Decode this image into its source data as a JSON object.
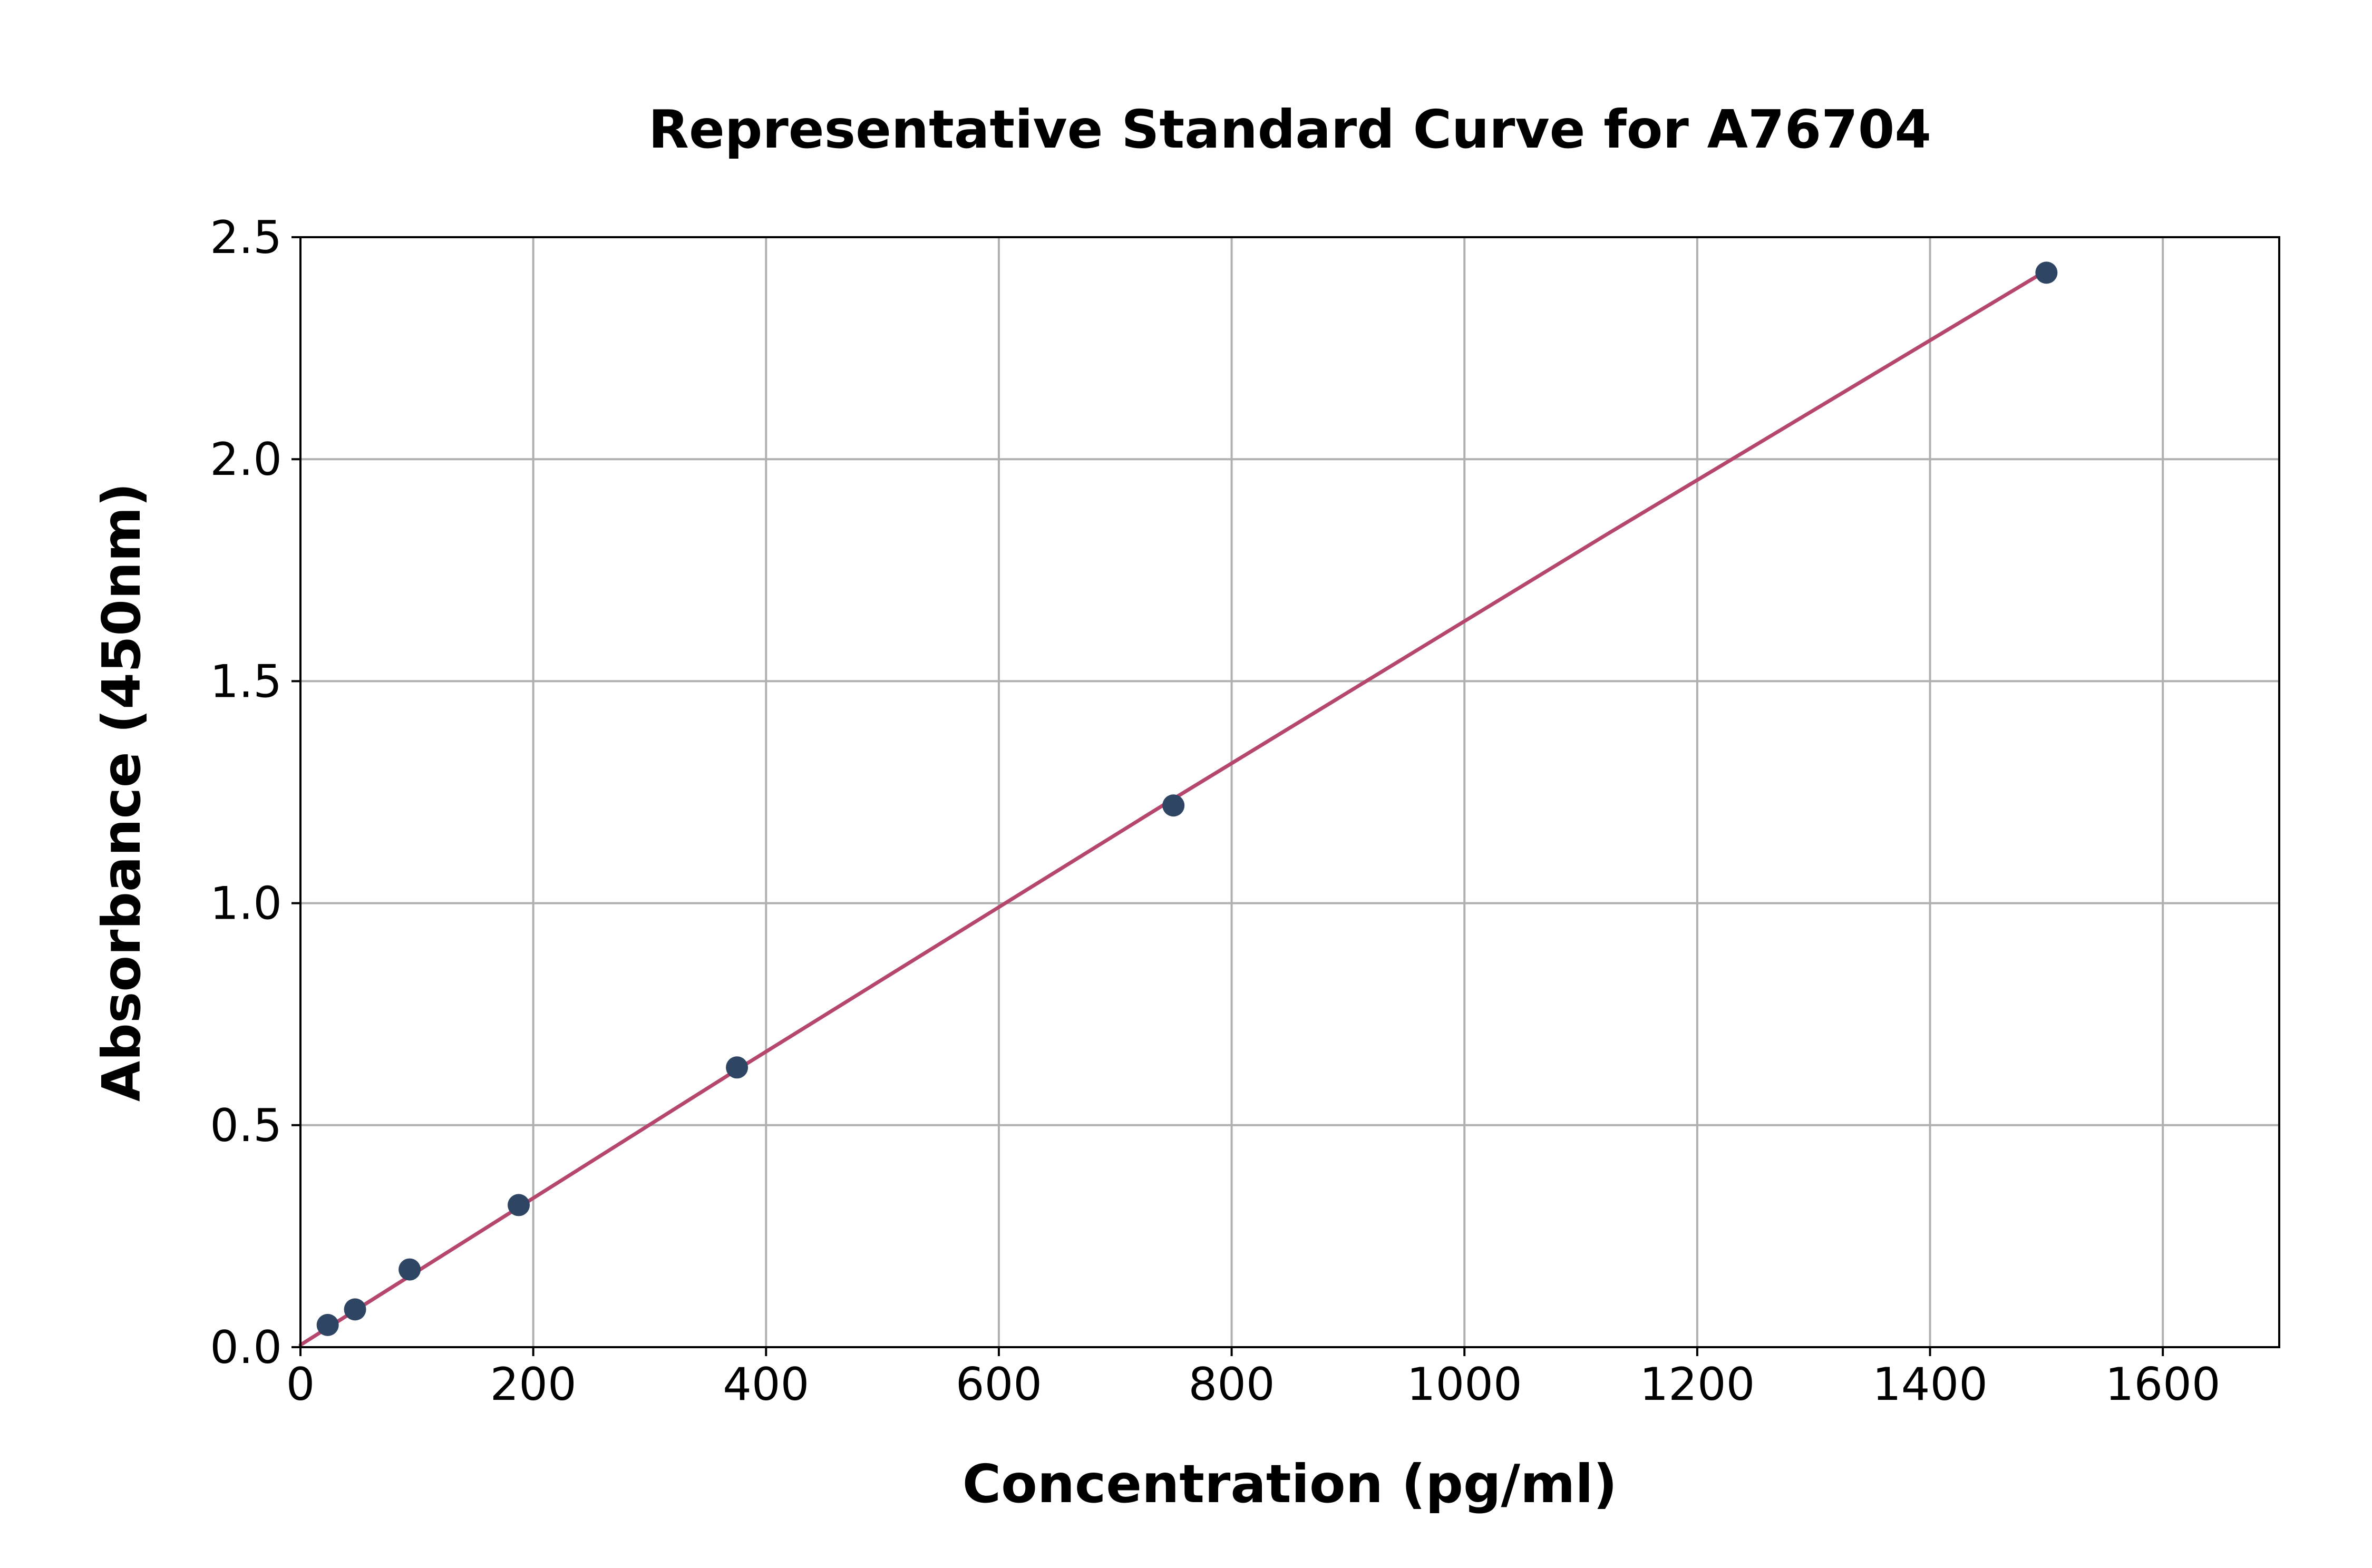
{
  "chart_data": {
    "type": "scatter",
    "title": "Representative Standard Curve for A76704",
    "xlabel": "Concentration (pg/ml)",
    "ylabel": "Absorbance (450nm)",
    "xlim": [
      0,
      1700
    ],
    "ylim": [
      0,
      2.5
    ],
    "x_ticks": [
      0,
      200,
      400,
      600,
      800,
      1000,
      1200,
      1400,
      1600
    ],
    "x_tick_labels": [
      "0",
      "200",
      "400",
      "600",
      "800",
      "1000",
      "1200",
      "1400",
      "1600"
    ],
    "y_ticks": [
      0,
      0.5,
      1.0,
      1.5,
      2.0,
      2.5
    ],
    "y_tick_labels": [
      "0.0",
      "0.5",
      "1.0",
      "1.5",
      "2.0",
      "2.5"
    ],
    "grid": true,
    "series": [
      {
        "kind": "points",
        "x": [
          23.4,
          46.9,
          93.8,
          187.5,
          375,
          750,
          1500
        ],
        "y": [
          0.05,
          0.085,
          0.175,
          0.32,
          0.63,
          1.22,
          2.42
        ],
        "color": "#2e4563"
      },
      {
        "kind": "fit-line",
        "x": [
          0,
          375,
          750,
          1125,
          1500
        ],
        "y": [
          0.005,
          0.625,
          1.235,
          1.835,
          2.425
        ],
        "color": "#b5466e"
      }
    ]
  }
}
